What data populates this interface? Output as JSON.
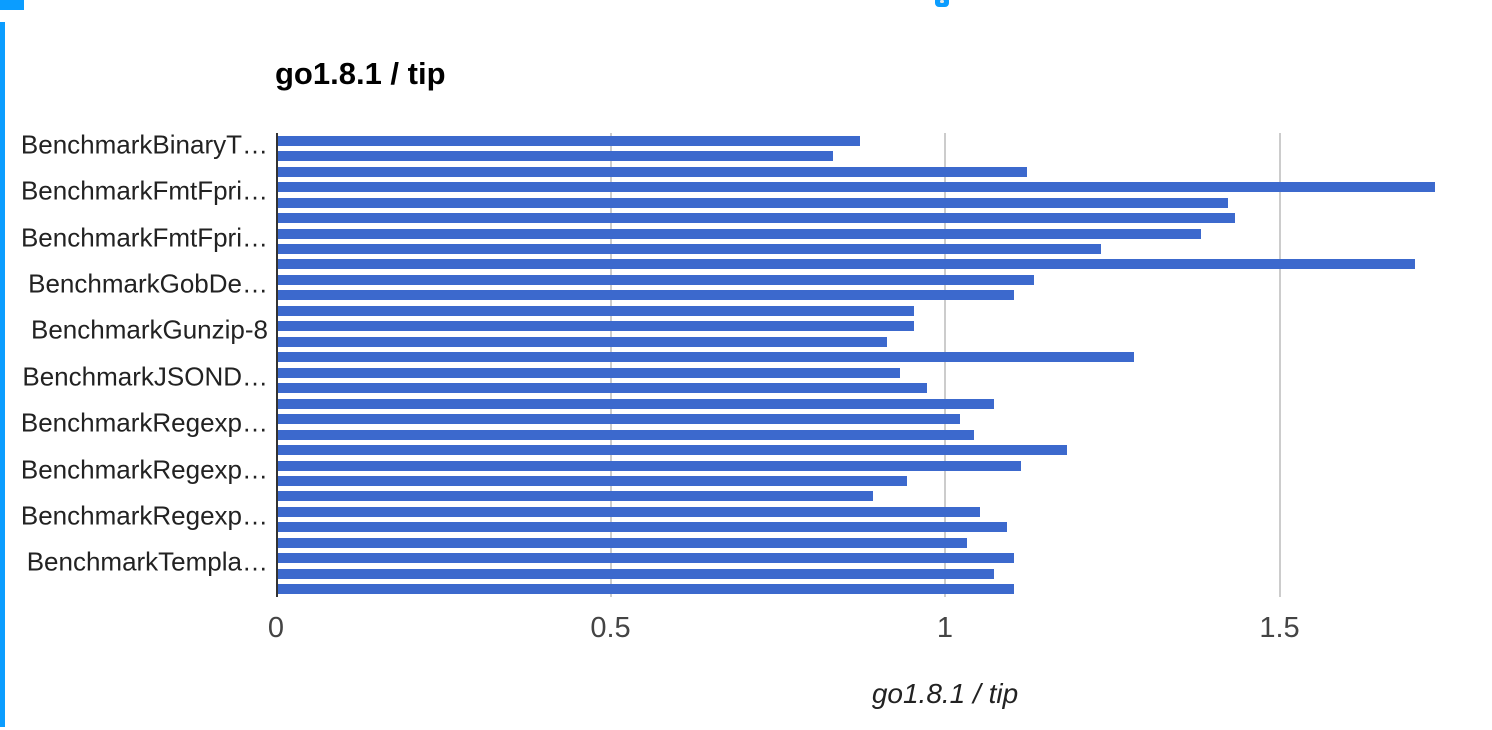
{
  "chart": {
    "title_label": "go1.8.1 / tip",
    "colors": {
      "bar": "#3c69cd",
      "gridline": "#cccccc",
      "axis_line": "#333333",
      "selection": "#0b9dff"
    }
  },
  "chart_data": {
    "type": "bar",
    "orientation": "horizontal",
    "title": "go1.8.1 / tip",
    "xlabel": "go1.8.1 / tip",
    "ylabel": "",
    "x_ticks": [
      0,
      0.5,
      1,
      1.5
    ],
    "xlim": [
      0,
      1.77
    ],
    "grid": true,
    "legend_position": "none",
    "label_shown_every_n_rows": 3,
    "categories": [
      "BenchmarkBinaryT…",
      "",
      "",
      "BenchmarkFmtFpri…",
      "",
      "",
      "BenchmarkFmtFpri…",
      "",
      "",
      "BenchmarkGobDe…",
      "",
      "",
      "BenchmarkGunzip-8",
      "",
      "",
      "BenchmarkJSOND…",
      "",
      "",
      "BenchmarkRegexp…",
      "",
      "",
      "BenchmarkRegexp…",
      "",
      "",
      "BenchmarkRegexp…",
      "",
      "",
      "BenchmarkTempla…",
      "",
      ""
    ],
    "values": [
      0.87,
      0.83,
      1.12,
      1.73,
      1.42,
      1.43,
      1.38,
      1.23,
      1.7,
      1.13,
      1.1,
      0.95,
      0.95,
      0.91,
      1.28,
      0.93,
      0.97,
      1.07,
      1.02,
      1.04,
      1.18,
      1.11,
      0.94,
      0.89,
      1.05,
      1.09,
      1.03,
      1.1,
      1.07,
      1.1
    ]
  }
}
